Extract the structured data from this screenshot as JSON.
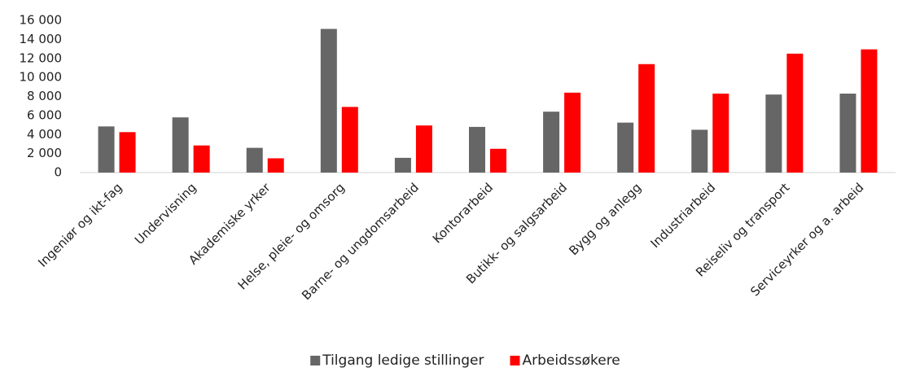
{
  "chart_data": {
    "type": "bar",
    "categories": [
      "Ingeniør og ikt-fag",
      "Undervisning",
      "Akademiske yrker",
      "Helse, pleie- og omsorg",
      "Barne- og ungdomsarbeid",
      "Kontorarbeid",
      "Butikk- og salgsarbeid",
      "Bygg og anlegg",
      "Industriarbeid",
      "Reiseliv og transport",
      "Serviceyrker og a. arbeid"
    ],
    "series": [
      {
        "name": "Tilgang ledige stillinger",
        "color": "#666666",
        "values": [
          4850,
          5800,
          2600,
          15100,
          1550,
          4800,
          6400,
          5250,
          4500,
          8200,
          8300
        ]
      },
      {
        "name": "Arbeidssøkere",
        "color": "#ff0000",
        "values": [
          4250,
          2850,
          1500,
          6900,
          4950,
          2500,
          8400,
          11400,
          8300,
          12500,
          12950
        ]
      }
    ],
    "ylim": [
      0,
      16000
    ],
    "yticks": [
      0,
      {
        "value": 2000,
        "label": "2 000"
      },
      {
        "value": 4000,
        "label": "4 000"
      },
      {
        "value": 6000,
        "label": "6 000"
      },
      {
        "value": 8000,
        "label": "8 000"
      },
      {
        "value": 10000,
        "label": "10 000"
      },
      {
        "value": 12000,
        "label": "12 000"
      },
      {
        "value": 14000,
        "label": "14 000"
      },
      {
        "value": 16000,
        "label": "16 000"
      }
    ],
    "grid": false,
    "legend": "bottom"
  }
}
